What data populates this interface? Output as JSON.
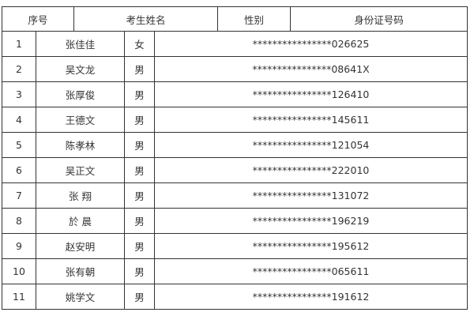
{
  "headers": [
    "序号",
    "考生姓名",
    "性别",
    "身份证号码"
  ],
  "rows": [
    [
      "1",
      "张佳佳",
      "女",
      "****************026625"
    ],
    [
      "2",
      "吴文龙",
      "男",
      "****************08641X"
    ],
    [
      "3",
      "张厚俊",
      "男",
      "****************126410"
    ],
    [
      "4",
      "王德文",
      "男",
      "****************145611"
    ],
    [
      "5",
      "陈孝林",
      "男",
      "****************121054"
    ],
    [
      "6",
      "吴正文",
      "男",
      "****************222010"
    ],
    [
      "7",
      "张 翔",
      "男",
      "****************131072"
    ],
    [
      "8",
      "於 晨",
      "男",
      "****************196219"
    ],
    [
      "9",
      "赵安明",
      "男",
      "****************195612"
    ],
    [
      "10",
      "张有朝",
      "男",
      "****************065611"
    ],
    [
      "11",
      "姚学文",
      "男",
      "****************191612"
    ]
  ]
}
